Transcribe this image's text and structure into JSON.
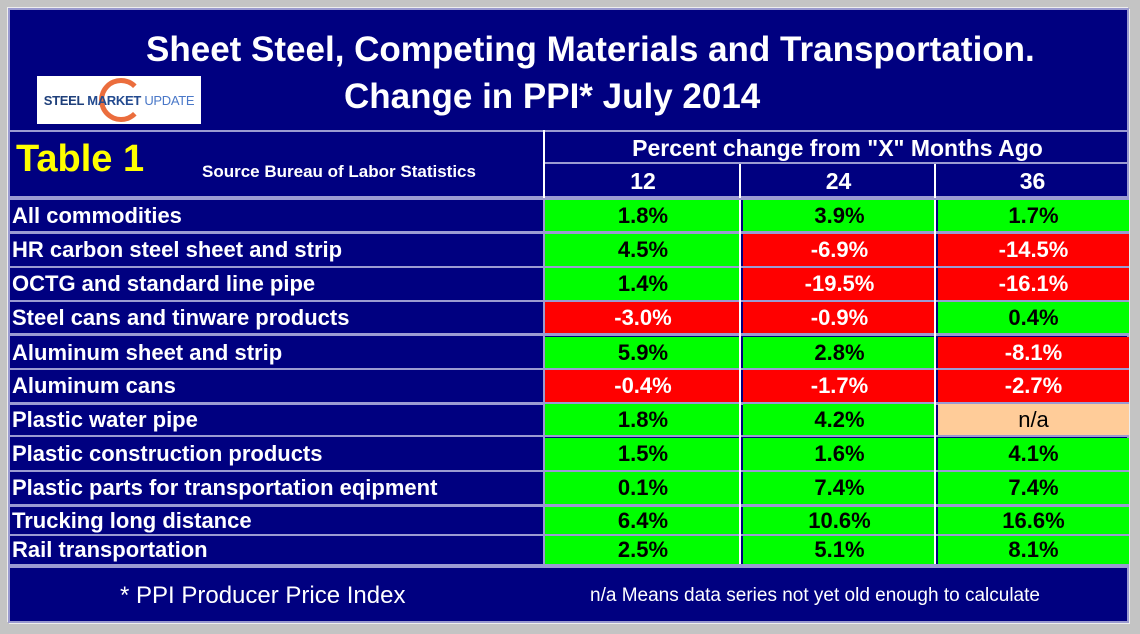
{
  "title": {
    "line1": "Sheet Steel, Competing Materials and Transportation.",
    "line2": "Change in PPI* July 2014"
  },
  "logo": {
    "part1": "STEEL",
    "part2": "MARKET",
    "part3": "UPDATE"
  },
  "table": {
    "label": "Table 1",
    "source": "Source Bureau of Labor Statistics",
    "column_group_header": "Percent change from \"X\" Months Ago",
    "columns": [
      "12",
      "24",
      "36"
    ],
    "rows": [
      {
        "label": "All commodities",
        "values": [
          "1.8%",
          "3.9%",
          "1.7%"
        ],
        "status": [
          "pos",
          "pos",
          "pos"
        ]
      },
      {
        "label": "HR carbon steel sheet and strip",
        "values": [
          "4.5%",
          "-6.9%",
          "-14.5%"
        ],
        "status": [
          "pos",
          "neg",
          "neg"
        ]
      },
      {
        "label": "OCTG and standard line pipe",
        "values": [
          "1.4%",
          "-19.5%",
          "-16.1%"
        ],
        "status": [
          "pos",
          "neg",
          "neg"
        ]
      },
      {
        "label": "Steel cans and tinware products",
        "values": [
          "-3.0%",
          "-0.9%",
          "0.4%"
        ],
        "status": [
          "neg",
          "neg",
          "pos"
        ]
      },
      {
        "label": "Aluminum sheet and strip",
        "values": [
          "5.9%",
          "2.8%",
          "-8.1%"
        ],
        "status": [
          "pos",
          "pos",
          "neg"
        ]
      },
      {
        "label": "Aluminum cans",
        "values": [
          "-0.4%",
          "-1.7%",
          "-2.7%"
        ],
        "status": [
          "neg",
          "neg",
          "neg"
        ]
      },
      {
        "label": "Plastic water pipe",
        "values": [
          "1.8%",
          "4.2%",
          "n/a"
        ],
        "status": [
          "pos",
          "pos",
          "na"
        ]
      },
      {
        "label": "Plastic construction products",
        "values": [
          "1.5%",
          "1.6%",
          "4.1%"
        ],
        "status": [
          "pos",
          "pos",
          "pos"
        ]
      },
      {
        "label": "Plastic parts for transportation eqipment",
        "values": [
          "0.1%",
          "7.4%",
          "7.4%"
        ],
        "status": [
          "pos",
          "pos",
          "pos"
        ]
      },
      {
        "label": "Trucking long distance",
        "values": [
          "6.4%",
          "10.6%",
          "16.6%"
        ],
        "status": [
          "pos",
          "pos",
          "pos"
        ]
      },
      {
        "label": "Rail transportation",
        "values": [
          "2.5%",
          "5.1%",
          "8.1%"
        ],
        "status": [
          "pos",
          "pos",
          "pos"
        ]
      }
    ]
  },
  "footer": {
    "note_ppi": "* PPI  Producer Price Index",
    "note_na": "n/a Means data series not yet old enough to calculate"
  },
  "colors": {
    "background": "#000080",
    "positive": "#00ff00",
    "negative": "#ff0000",
    "not_available": "#ffcc99",
    "table_label": "#ffff00"
  }
}
